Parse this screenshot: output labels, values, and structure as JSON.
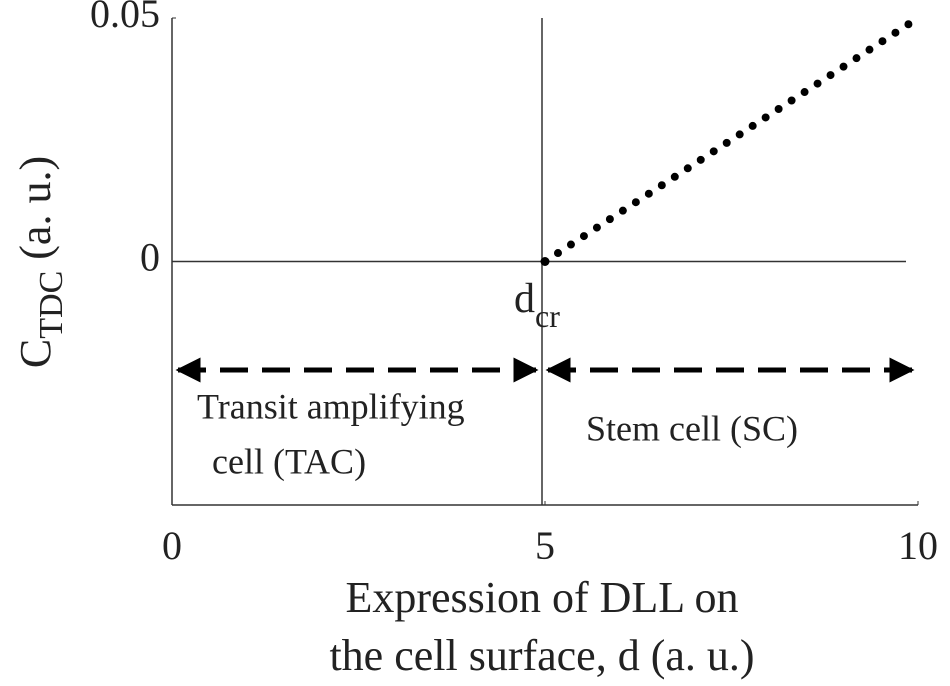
{
  "chart_data": {
    "type": "line",
    "ylabel": {
      "main": "C",
      "sub": "TDC",
      "rest": " (a. u.)"
    },
    "xlabel": [
      "Expression of DLL on",
      "the cell surface, d (a. u.)"
    ],
    "xlim": [
      0,
      10
    ],
    "xticks": [
      0,
      5,
      10
    ],
    "ylim": [
      -0.05,
      0.05
    ],
    "yticks": [
      0,
      0.05
    ],
    "x": [
      5,
      10
    ],
    "values": [
      0,
      0.05
    ],
    "color": "#000000",
    "style": "dotted",
    "point_label": {
      "main": "d",
      "sub": "cr"
    },
    "regions": [
      {
        "label": [
          "Transit amplifying",
          "cell (TAC)"
        ]
      },
      {
        "label": [
          "Stem cell (SC)"
        ]
      }
    ]
  }
}
